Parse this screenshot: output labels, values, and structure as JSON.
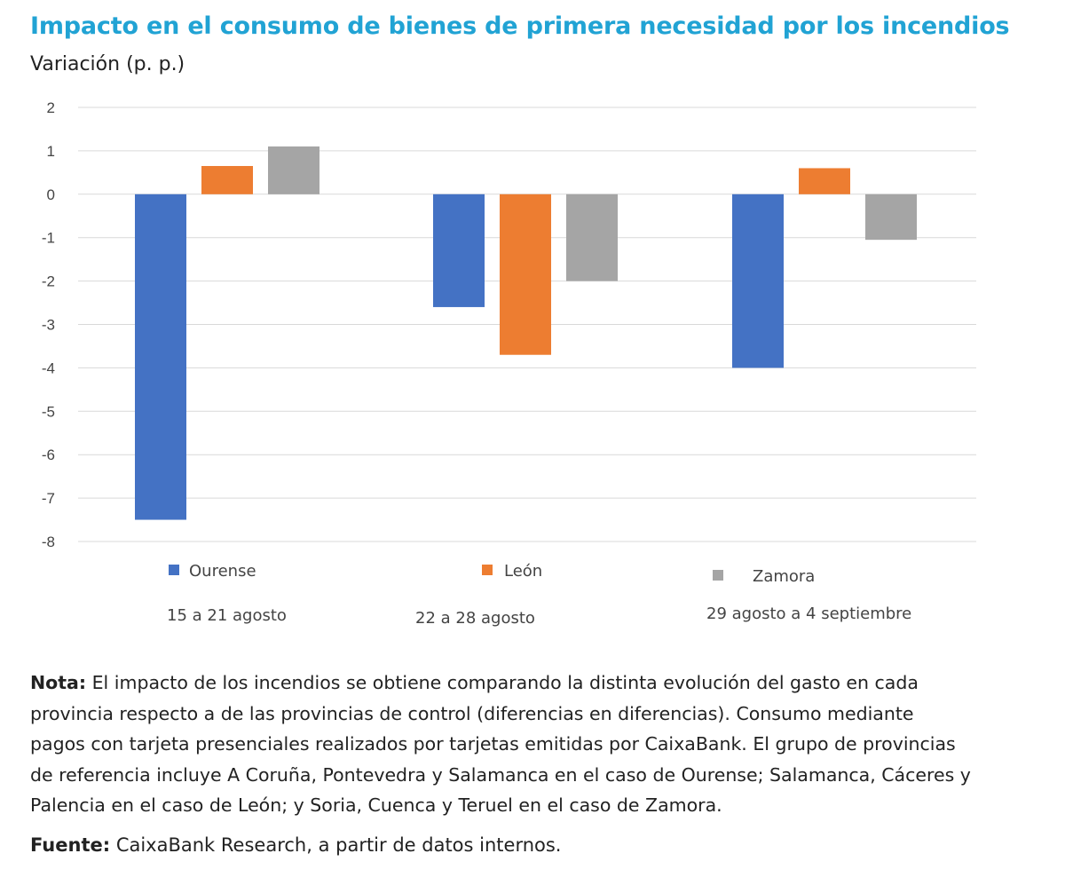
{
  "colors": {
    "title": "#21a3d4",
    "ourense": "#4472c4",
    "leon": "#ed7d31",
    "zamora": "#a5a5a5",
    "grid": "#d9d9d9"
  },
  "chart_data": {
    "type": "bar",
    "title": "Impacto en el consumo de bienes de primera necesidad por los incendios",
    "ylabel": "Variación (p. p.)",
    "xlabel": "",
    "ylim": [
      -8,
      2
    ],
    "yticks": [
      "2",
      "1",
      "0",
      "-1",
      "-2",
      "-3",
      "-4",
      "-5",
      "-6",
      "-7",
      "-8"
    ],
    "ytick_values": [
      2,
      1,
      0,
      -1,
      -2,
      -3,
      -4,
      -5,
      -6,
      -7,
      -8
    ],
    "grid": true,
    "legend_position": "bottom",
    "categories": [
      "15 a 21 agosto",
      "22 a 28 agosto",
      "29 agosto a 4 septiembre"
    ],
    "series": [
      {
        "name": "Ourense",
        "values": [
          -7.5,
          -2.6,
          -4.0
        ]
      },
      {
        "name": "León",
        "values": [
          0.65,
          -3.7,
          0.6
        ]
      },
      {
        "name": "Zamora",
        "values": [
          1.1,
          -2.0,
          -1.05
        ]
      }
    ]
  },
  "note": {
    "label": "Nota:",
    "lines": [
      "El impacto de los incendios se obtiene comparando la distinta evolución del gasto en cada",
      "provincia respecto a de las provincias de control (diferencias en diferencias). Consumo mediante",
      "pagos con tarjeta presenciales realizados por tarjetas emitidas por CaixaBank. El grupo de provincias",
      "de referencia incluye A Coruña, Pontevedra y Salamanca en el caso de Ourense; Salamanca, Cáceres y",
      "Palencia en el caso de León; y Soria, Cuenca y Teruel en el caso de Zamora."
    ]
  },
  "source": {
    "label": "Fuente:",
    "text": "CaixaBank Research, a partir de datos internos."
  }
}
